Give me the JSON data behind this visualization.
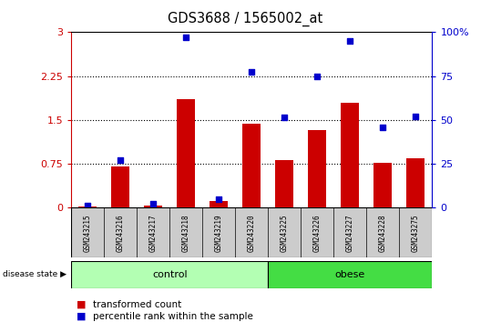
{
  "title": "GDS3688 / 1565002_at",
  "samples": [
    "GSM243215",
    "GSM243216",
    "GSM243217",
    "GSM243218",
    "GSM243219",
    "GSM243220",
    "GSM243225",
    "GSM243226",
    "GSM243227",
    "GSM243228",
    "GSM243275"
  ],
  "bar_values": [
    0.02,
    0.7,
    0.03,
    1.85,
    0.12,
    1.44,
    0.82,
    1.32,
    1.8,
    0.76,
    0.85
  ],
  "dot_values_scaled": [
    0.04,
    0.82,
    0.06,
    2.92,
    0.15,
    2.32,
    1.54,
    2.25,
    2.85,
    1.38,
    1.56
  ],
  "bar_color": "#cc0000",
  "dot_color": "#0000cc",
  "ylim": [
    0,
    3
  ],
  "yticks_left": [
    0,
    0.75,
    1.5,
    2.25,
    3.0
  ],
  "ytick_labels_left": [
    "0",
    "0.75",
    "1.5",
    "2.25",
    "3"
  ],
  "ytick_labels_right": [
    "0",
    "25",
    "50",
    "75",
    "100%"
  ],
  "control_color": "#b3ffb3",
  "obese_color": "#44dd44",
  "legend_bar_label": "transformed count",
  "legend_dot_label": "percentile rank within the sample",
  "label_bg_color": "#cccccc"
}
